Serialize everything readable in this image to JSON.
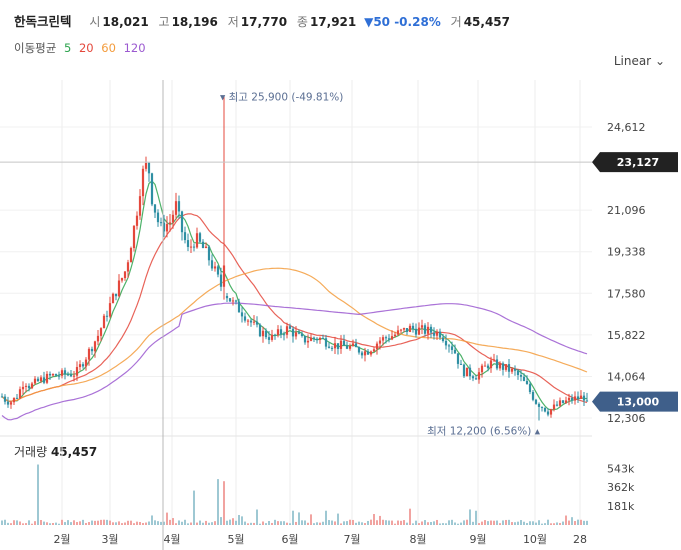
{
  "header": {
    "name": "한독크린텍",
    "open_label": "시",
    "open": "18,021",
    "high_label": "고",
    "high": "18,196",
    "low_label": "저",
    "low": "17,770",
    "close_label": "종",
    "close": "17,921",
    "change": "▼50 -0.28%",
    "volume_label": "거",
    "volume": "45,457"
  },
  "ma_legend": {
    "label": "이동평균",
    "items": [
      {
        "period": "5",
        "color": "#2ea44f"
      },
      {
        "period": "20",
        "color": "#e4483c"
      },
      {
        "period": "60",
        "color": "#f39c3d"
      },
      {
        "period": "120",
        "color": "#9b59d0"
      }
    ]
  },
  "scale_selector": "Linear",
  "crosshair_price": "23,127",
  "last_price": "13,000",
  "high_annotation": "최고 25,900 (-49.81%)",
  "low_annotation": "최저 12,200 (6.56%)",
  "volume_title": "거래량",
  "volume_value": "45,457",
  "colors": {
    "up": "#e4483c",
    "down": "#2f8fa3",
    "crosshair_tag": "#222222",
    "last_tag": "#3f5f8a"
  },
  "chart_data": {
    "type": "candlestick",
    "x_ticks": [
      "2월",
      "3월",
      "4월",
      "5월",
      "6월",
      "7월",
      "8월",
      "9월",
      "10월",
      "28"
    ],
    "y_ticks": [
      "24,612",
      "23,127",
      "21,096",
      "19,338",
      "17,580",
      "15,822",
      "14,064",
      "12,306"
    ],
    "ylim": [
      11800,
      26600
    ],
    "volume_ticks": [
      "543k",
      "362k",
      "181k"
    ],
    "volume_ylim": [
      0,
      700000
    ],
    "highlight": {
      "high": 25900,
      "low": 12200,
      "last": 13000,
      "crosshair": 23127
    },
    "volume_spikes": [
      {
        "month": "2월",
        "value": 580000
      },
      {
        "month": "4월",
        "value": 390000
      },
      {
        "month": "5월",
        "value": 450000
      },
      {
        "month": "5월",
        "value": 420000
      }
    ]
  }
}
